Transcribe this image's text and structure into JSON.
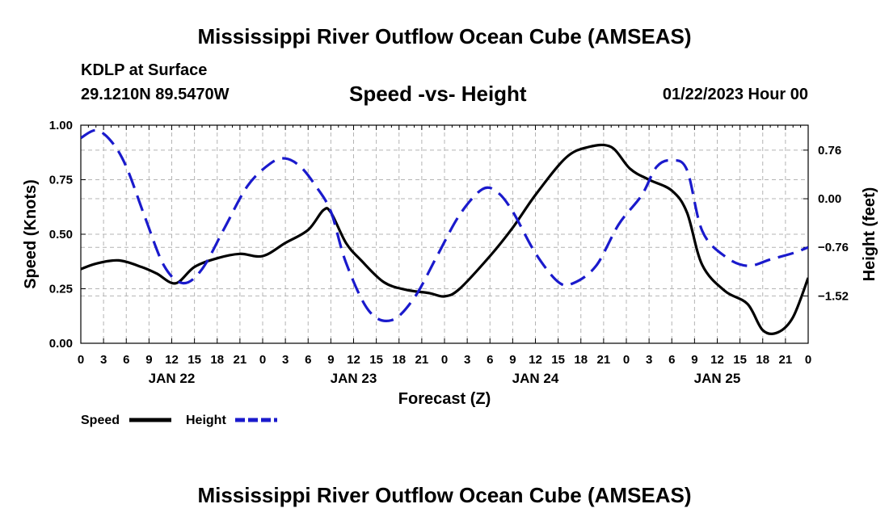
{
  "header": {
    "title": "Mississippi River Outflow Ocean Cube (AMSEAS)",
    "station": "KDLP at Surface",
    "coords": "29.1210N  89.5470W",
    "subtitle": "Speed -vs- Height",
    "datetime": "01/22/2023 Hour 00"
  },
  "footer": {
    "title": "Mississippi River Outflow Ocean Cube (AMSEAS)"
  },
  "chart_data": {
    "type": "line",
    "xlabel": "Forecast (Z)",
    "ylabel_left": "Speed (Knots)",
    "ylabel_right": "Height (feet)",
    "x_range_hours": [
      0,
      96
    ],
    "ylim_left": [
      0,
      1.0
    ],
    "ylim_right": [
      -2.26,
      1.15
    ],
    "grid": true,
    "hour_ticks": [
      0,
      3,
      6,
      9,
      12,
      15,
      18,
      21,
      24,
      27,
      30,
      33,
      36,
      39,
      42,
      45,
      48,
      51,
      54,
      57,
      60,
      63,
      66,
      69,
      72,
      75,
      78,
      81,
      84,
      87,
      90,
      93,
      96
    ],
    "hour_tick_labels": [
      "0",
      "3",
      "6",
      "9",
      "12",
      "15",
      "18",
      "21",
      "0",
      "3",
      "6",
      "9",
      "12",
      "15",
      "18",
      "21",
      "0",
      "3",
      "6",
      "9",
      "12",
      "15",
      "18",
      "21",
      "0",
      "3",
      "6",
      "9",
      "12",
      "15",
      "18",
      "21",
      "0"
    ],
    "day_labels": [
      {
        "label": "JAN 22",
        "hour": 12
      },
      {
        "label": "JAN 23",
        "hour": 36
      },
      {
        "label": "JAN 24",
        "hour": 60
      },
      {
        "label": "JAN 25",
        "hour": 84
      }
    ],
    "left_ticks": [
      {
        "value": 0.0,
        "label": "0.00"
      },
      {
        "value": 0.25,
        "label": "0.25"
      },
      {
        "value": 0.5,
        "label": "0.50"
      },
      {
        "value": 0.75,
        "label": "0.75"
      },
      {
        "value": 1.0,
        "label": "1.00"
      }
    ],
    "right_ticks": [
      {
        "value": 0.76,
        "label": "0.76"
      },
      {
        "value": 0.0,
        "label": "0.00"
      },
      {
        "value": -0.76,
        "label": "−0.76"
      },
      {
        "value": -1.52,
        "label": "−1.52"
      }
    ],
    "legend_position": "bottom-left",
    "series": [
      {
        "name": "Speed",
        "axis": "left",
        "color": "#000000",
        "style": "solid",
        "x": [
          0,
          2,
          5,
          8,
          10,
          12.5,
          15,
          18,
          21,
          24,
          27,
          30,
          32,
          33,
          35,
          37,
          40,
          43,
          46,
          48,
          50,
          54,
          57,
          60,
          64,
          67,
          70,
          72.5,
          75,
          78,
          80,
          82,
          85,
          88,
          90,
          92,
          94,
          96
        ],
        "values": [
          0.34,
          0.365,
          0.38,
          0.35,
          0.32,
          0.275,
          0.35,
          0.39,
          0.41,
          0.4,
          0.46,
          0.52,
          0.61,
          0.6,
          0.46,
          0.38,
          0.28,
          0.245,
          0.23,
          0.215,
          0.25,
          0.4,
          0.53,
          0.68,
          0.85,
          0.9,
          0.9,
          0.8,
          0.75,
          0.7,
          0.6,
          0.36,
          0.24,
          0.18,
          0.06,
          0.05,
          0.12,
          0.3
        ]
      },
      {
        "name": "Height",
        "axis": "right",
        "color": "#1a1acc",
        "style": "dashed",
        "x": [
          0,
          2,
          4,
          6,
          8.5,
          11,
          13.5,
          16,
          19,
          22,
          25,
          27,
          29,
          31,
          33,
          35,
          38,
          41,
          44,
          47,
          50,
          53,
          55,
          57,
          60,
          63,
          65,
          68,
          71,
          74,
          76,
          78,
          80,
          82,
          85,
          88,
          91,
          94,
          96
        ],
        "values": [
          0.95,
          1.07,
          0.9,
          0.5,
          -0.3,
          -1.05,
          -1.32,
          -1.1,
          -0.45,
          0.2,
          0.55,
          0.63,
          0.5,
          0.2,
          -0.2,
          -1.0,
          -1.75,
          -1.9,
          -1.55,
          -0.9,
          -0.25,
          0.15,
          0.1,
          -0.2,
          -0.85,
          -1.3,
          -1.32,
          -1.05,
          -0.4,
          0.05,
          0.5,
          0.6,
          0.45,
          -0.5,
          -0.9,
          -1.05,
          -0.95,
          -0.85,
          -0.76
        ]
      }
    ]
  }
}
